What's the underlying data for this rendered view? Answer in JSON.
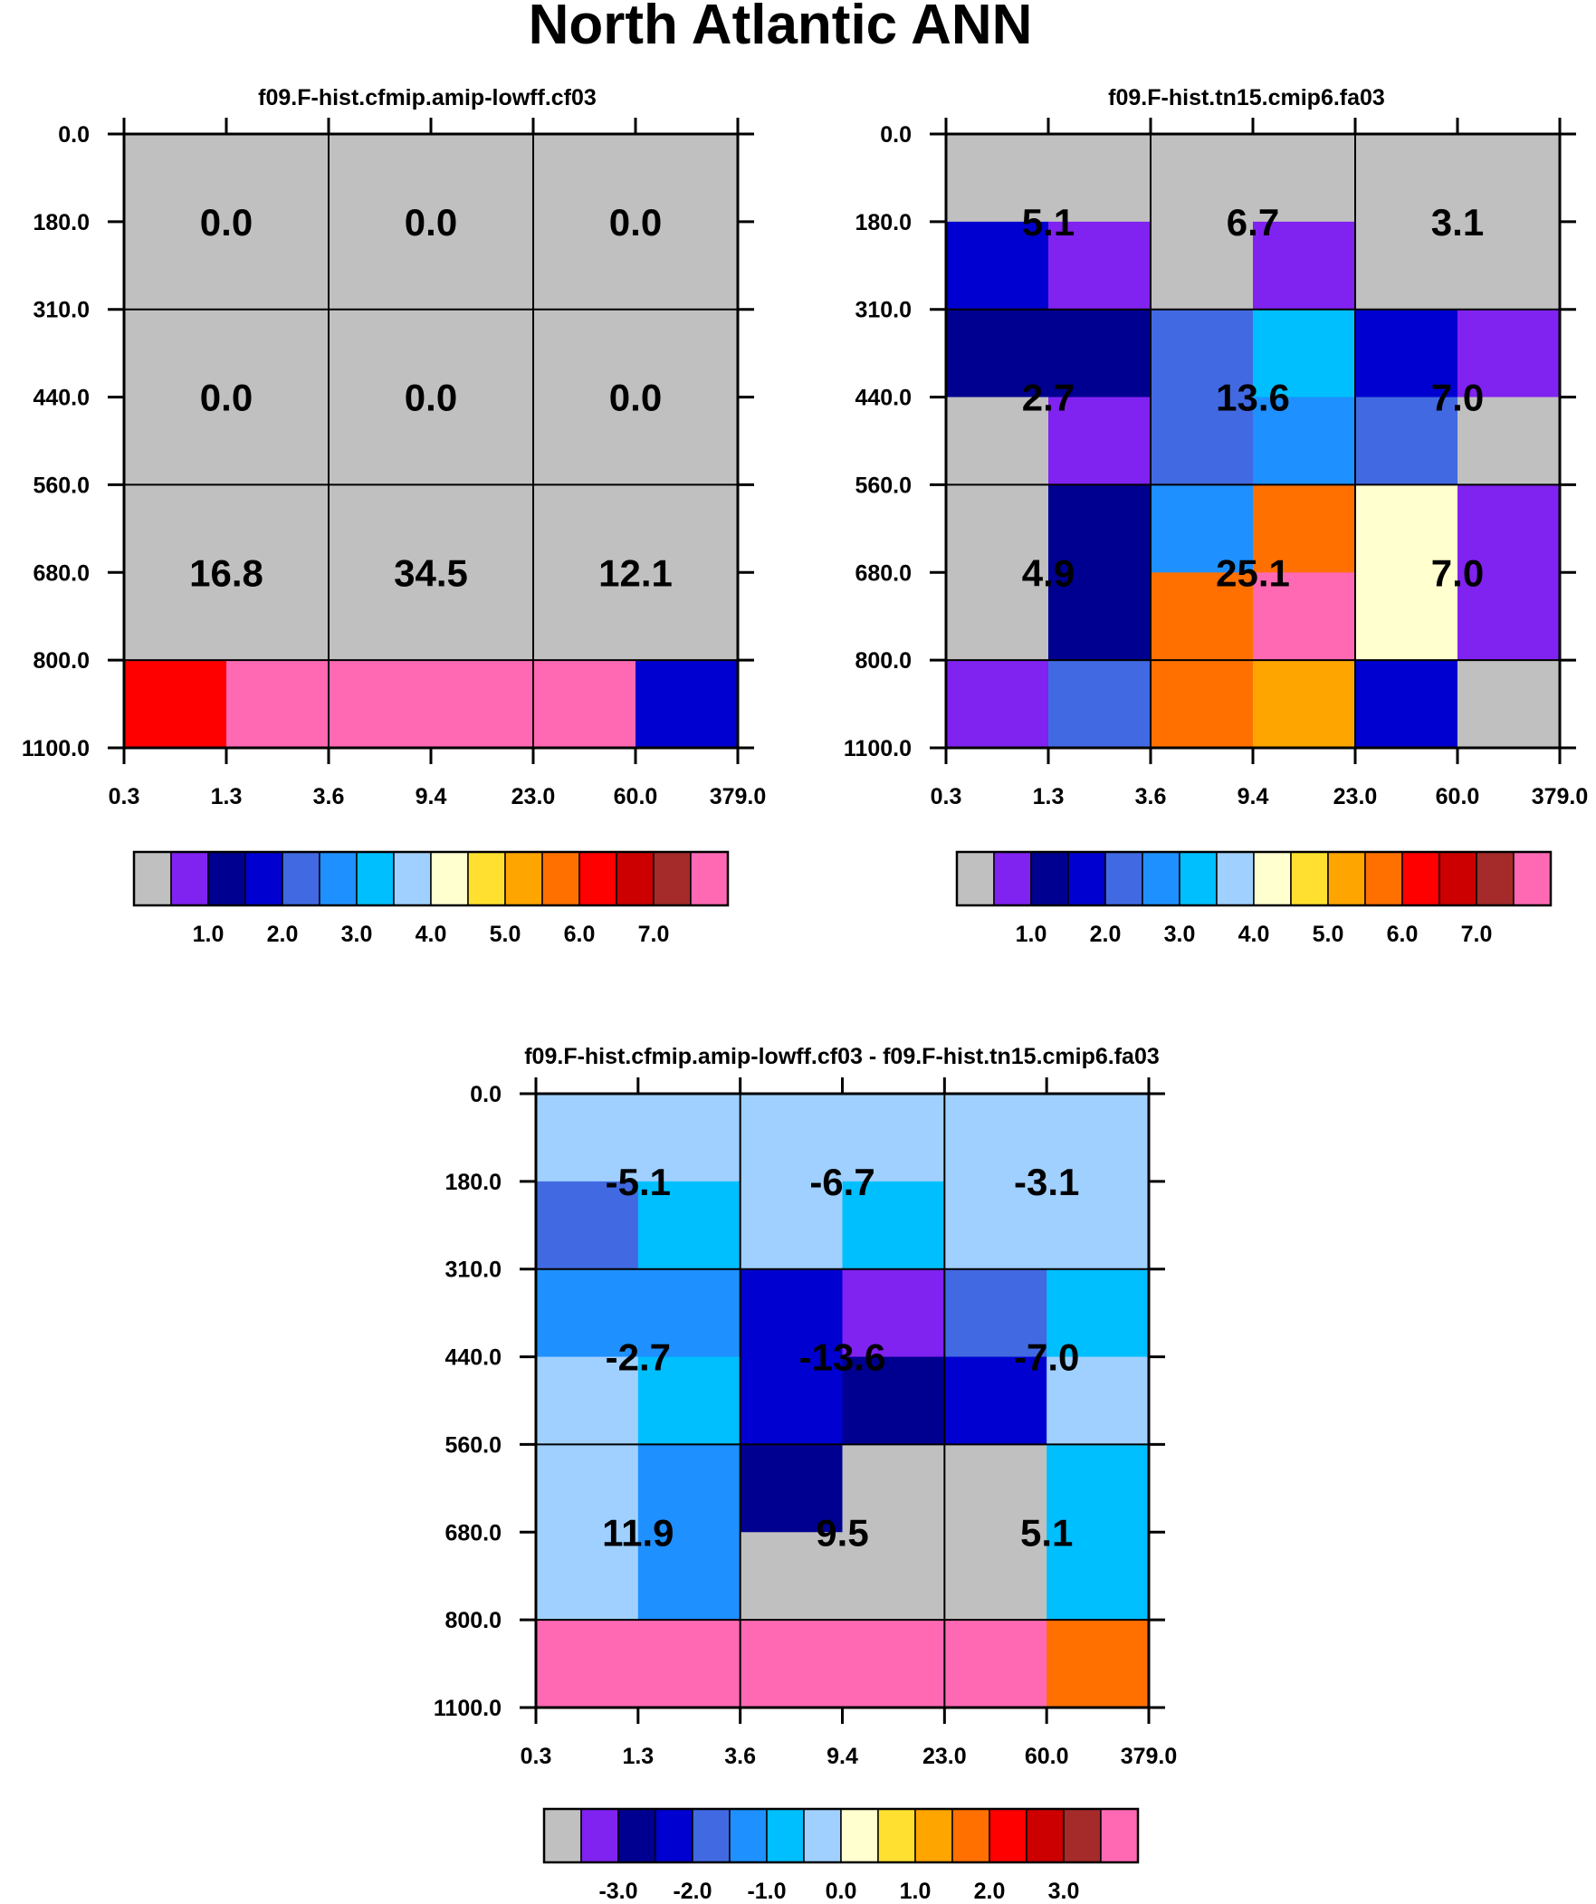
{
  "page_title": "North Atlantic ANN",
  "colors": {
    "seq_palette": [
      "#c0c0c0",
      "#8022f0",
      "#000090",
      "#0000d0",
      "#4169e1",
      "#1e90ff",
      "#00bfff",
      "#a0d0ff",
      "#ffffd0",
      "#ffe030",
      "#ffa500",
      "#ff7000",
      "#ff0000",
      "#cc0000",
      "#a52a2a",
      "#ff69b4"
    ],
    "div_palette": [
      "#c0c0c0",
      "#8022f0",
      "#000090",
      "#0000d0",
      "#4169e1",
      "#1e90ff",
      "#00bfff",
      "#a0d0ff",
      "#ffffd0",
      "#ffe030",
      "#ffa500",
      "#ff7000",
      "#ff0000",
      "#cc0000",
      "#a52a2a",
      "#ff69b4"
    ]
  },
  "chart_data": [
    {
      "type": "heatmap",
      "id": "cf03",
      "title": "f09.F-hist.cfmip.amip-lowff.cf03",
      "xticks": [
        "0.3",
        "1.3",
        "3.6",
        "9.4",
        "23.0",
        "60.0",
        "379.0"
      ],
      "yticks": [
        "0.0",
        "180.0",
        "310.0",
        "440.0",
        "560.0",
        "680.0",
        "800.0",
        "1100.0"
      ],
      "cells": [
        [
          0,
          0,
          0,
          0,
          0,
          0
        ],
        [
          0,
          0,
          0,
          0,
          0,
          0
        ],
        [
          0,
          0,
          0,
          0,
          0,
          0
        ],
        [
          0,
          0,
          0,
          0,
          0,
          0
        ],
        [
          0,
          0,
          0,
          0,
          0,
          0
        ],
        [
          0,
          0,
          0,
          0,
          0,
          0
        ],
        [
          12,
          15,
          15,
          15,
          15,
          3
        ]
      ],
      "block_labels": [
        [
          "0.0",
          "0.0",
          "0.0"
        ],
        [
          "0.0",
          "0.0",
          "0.0"
        ],
        [
          "16.8",
          "34.5",
          "12.1"
        ]
      ],
      "colorbar": {
        "palette": "seq_palette",
        "labels": [
          "1.0",
          "2.0",
          "3.0",
          "4.0",
          "5.0",
          "6.0",
          "7.0"
        ]
      }
    },
    {
      "type": "heatmap",
      "id": "fa03",
      "title": "f09.F-hist.tn15.cmip6.fa03",
      "xticks": [
        "0.3",
        "1.3",
        "3.6",
        "9.4",
        "23.0",
        "60.0",
        "379.0"
      ],
      "yticks": [
        "0.0",
        "180.0",
        "310.0",
        "440.0",
        "560.0",
        "680.0",
        "800.0",
        "1100.0"
      ],
      "cells": [
        [
          0,
          0,
          0,
          0,
          0,
          0
        ],
        [
          3,
          1,
          0,
          1,
          0,
          0
        ],
        [
          2,
          2,
          4,
          6,
          3,
          1
        ],
        [
          0,
          1,
          4,
          5,
          4,
          0
        ],
        [
          0,
          2,
          5,
          11,
          8,
          1
        ],
        [
          0,
          2,
          11,
          15,
          8,
          1
        ],
        [
          1,
          4,
          11,
          10,
          3,
          0
        ]
      ],
      "block_labels": [
        [
          "5.1",
          "6.7",
          "3.1"
        ],
        [
          "2.7",
          "13.6",
          "7.0"
        ],
        [
          "4.9",
          "25.1",
          "7.0"
        ]
      ],
      "colorbar": {
        "palette": "seq_palette",
        "labels": [
          "1.0",
          "2.0",
          "3.0",
          "4.0",
          "5.0",
          "6.0",
          "7.0"
        ]
      }
    },
    {
      "type": "heatmap",
      "id": "diff",
      "title": "f09.F-hist.cfmip.amip-lowff.cf03 - f09.F-hist.tn15.cmip6.fa03",
      "xticks": [
        "0.3",
        "1.3",
        "3.6",
        "9.4",
        "23.0",
        "60.0",
        "379.0"
      ],
      "yticks": [
        "0.0",
        "180.0",
        "310.0",
        "440.0",
        "560.0",
        "680.0",
        "800.0",
        "1100.0"
      ],
      "cells": [
        [
          7,
          7,
          7,
          7,
          7,
          7
        ],
        [
          4,
          6,
          7,
          6,
          7,
          7
        ],
        [
          5,
          5,
          3,
          1,
          4,
          6
        ],
        [
          7,
          6,
          3,
          2,
          3,
          7
        ],
        [
          7,
          5,
          2,
          0,
          0,
          6
        ],
        [
          7,
          5,
          0,
          0,
          0,
          6
        ],
        [
          15,
          15,
          15,
          15,
          15,
          11
        ]
      ],
      "block_labels": [
        [
          "-5.1",
          "-6.7",
          "-3.1"
        ],
        [
          "-2.7",
          "-13.6",
          "-7.0"
        ],
        [
          "11.9",
          "9.5",
          "5.1"
        ]
      ],
      "colorbar": {
        "palette": "div_palette",
        "labels": [
          "-3.0",
          "-2.0",
          "-1.0",
          "0.0",
          "1.0",
          "2.0",
          "3.0"
        ]
      }
    }
  ]
}
